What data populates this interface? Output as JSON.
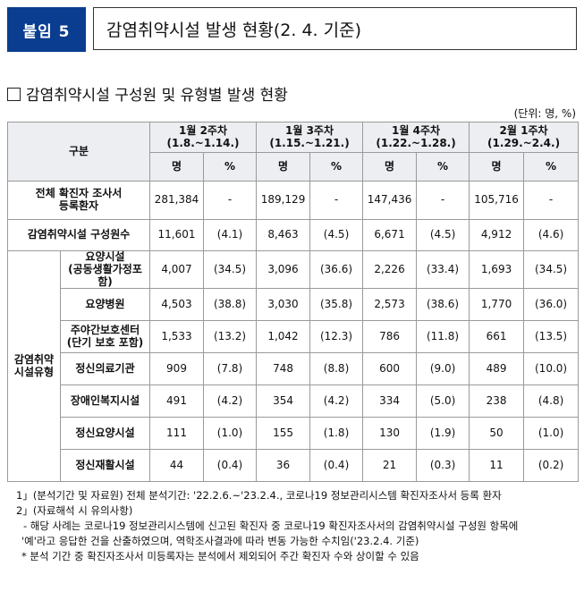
{
  "header": {
    "tag": "붙임 5",
    "title": "감염취약시설 발생 현황(2. 4. 기준)"
  },
  "section_title": "감염취약시설 구성원 및 유형별 발생 현황",
  "unit": "(단위: 명, %)",
  "table": {
    "corner": "구분",
    "weeks": [
      {
        "name": "1월 2주차",
        "range": "(1.8.~1.14.)"
      },
      {
        "name": "1월 3주차",
        "range": "(1.15.~1.21.)"
      },
      {
        "name": "1월 4주차",
        "range": "(1.22.~1.28.)"
      },
      {
        "name": "2월 1주차",
        "range": "(1.29.~2.4.)"
      }
    ],
    "sub": {
      "count": "명",
      "pct": "%"
    },
    "rows": [
      {
        "label": "전체 확진자 조사서\n등록환자",
        "cells": [
          "281,384",
          "-",
          "189,129",
          "-",
          "147,436",
          "-",
          "105,716",
          "-"
        ]
      },
      {
        "label": "감염취약시설 구성원수",
        "cells": [
          "11,601",
          "(4.1)",
          "8,463",
          "(4.5)",
          "6,671",
          "(4.5)",
          "4,912",
          "(4.6)"
        ]
      }
    ],
    "group_label": "감염취약\n시설유형",
    "group_rows": [
      {
        "label": "요양시설\n(공동생활가정포함)",
        "cells": [
          "4,007",
          "(34.5)",
          "3,096",
          "(36.6)",
          "2,226",
          "(33.4)",
          "1,693",
          "(34.5)"
        ]
      },
      {
        "label": "요양병원",
        "cells": [
          "4,503",
          "(38.8)",
          "3,030",
          "(35.8)",
          "2,573",
          "(38.6)",
          "1,770",
          "(36.0)"
        ]
      },
      {
        "label": "주야간보호센터\n(단기 보호 포함)",
        "cells": [
          "1,533",
          "(13.2)",
          "1,042",
          "(12.3)",
          "786",
          "(11.8)",
          "661",
          "(13.5)"
        ]
      },
      {
        "label": "정신의료기관",
        "cells": [
          "909",
          "(7.8)",
          "748",
          "(8.8)",
          "600",
          "(9.0)",
          "489",
          "(10.0)"
        ]
      },
      {
        "label": "장애인복지시설",
        "cells": [
          "491",
          "(4.2)",
          "354",
          "(4.2)",
          "334",
          "(5.0)",
          "238",
          "(4.8)"
        ]
      },
      {
        "label": "정신요양시설",
        "cells": [
          "111",
          "(1.0)",
          "155",
          "(1.8)",
          "130",
          "(1.9)",
          "50",
          "(1.0)"
        ]
      },
      {
        "label": "정신재활시설",
        "cells": [
          "44",
          "(0.4)",
          "36",
          "(0.4)",
          "21",
          "(0.3)",
          "11",
          "(0.2)"
        ]
      }
    ]
  },
  "notes": [
    "1」(분석기간 및 자료원) 전체 분석기간: '22.2.6.~'23.2.4., 코로나19 정보관리시스템 확진자조사서 등록 환자",
    "2」(자료해석 시 유의사항)",
    "- 해당 사례는 코로나19 정보관리시스템에 신고된 확진자 중 코로나19 확진자조사서의 감염취약시설 구성원 항목에",
    "'예'라고 응답한 건을 산출하였으며, 역학조사결과에 따라 변동 가능한 수치임('23.2.4. 기준)",
    "* 분석 기간 중 확진자조사서 미등록자는 분석에서 제외되어 주간 확진자 수와 상이할 수 있음"
  ],
  "colors": {
    "tag_bg": "#0a3d8f",
    "header_bg": "#eceef2"
  }
}
